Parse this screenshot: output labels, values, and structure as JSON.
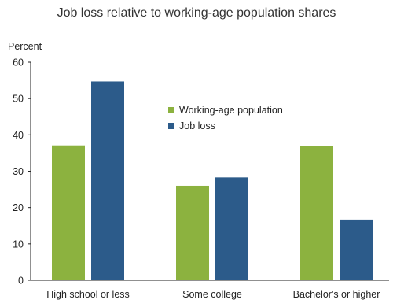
{
  "chart_data": {
    "type": "bar",
    "title": "Job loss relative to working-age population shares",
    "ylabel": "Percent",
    "xlabel": "",
    "categories": [
      "High school or less",
      "Some college",
      "Bachelor's or higher"
    ],
    "series": [
      {
        "name": "Working-age population",
        "values": [
          37.1,
          26.0,
          36.9
        ],
        "color": "#8cb23f"
      },
      {
        "name": "Job loss",
        "values": [
          54.7,
          28.3,
          16.7
        ],
        "color": "#2c5b8a"
      }
    ],
    "ylim": [
      0,
      60
    ],
    "yticks": [
      0,
      10,
      20,
      30,
      40,
      50,
      60
    ],
    "grid": false,
    "legend_position": "center"
  }
}
